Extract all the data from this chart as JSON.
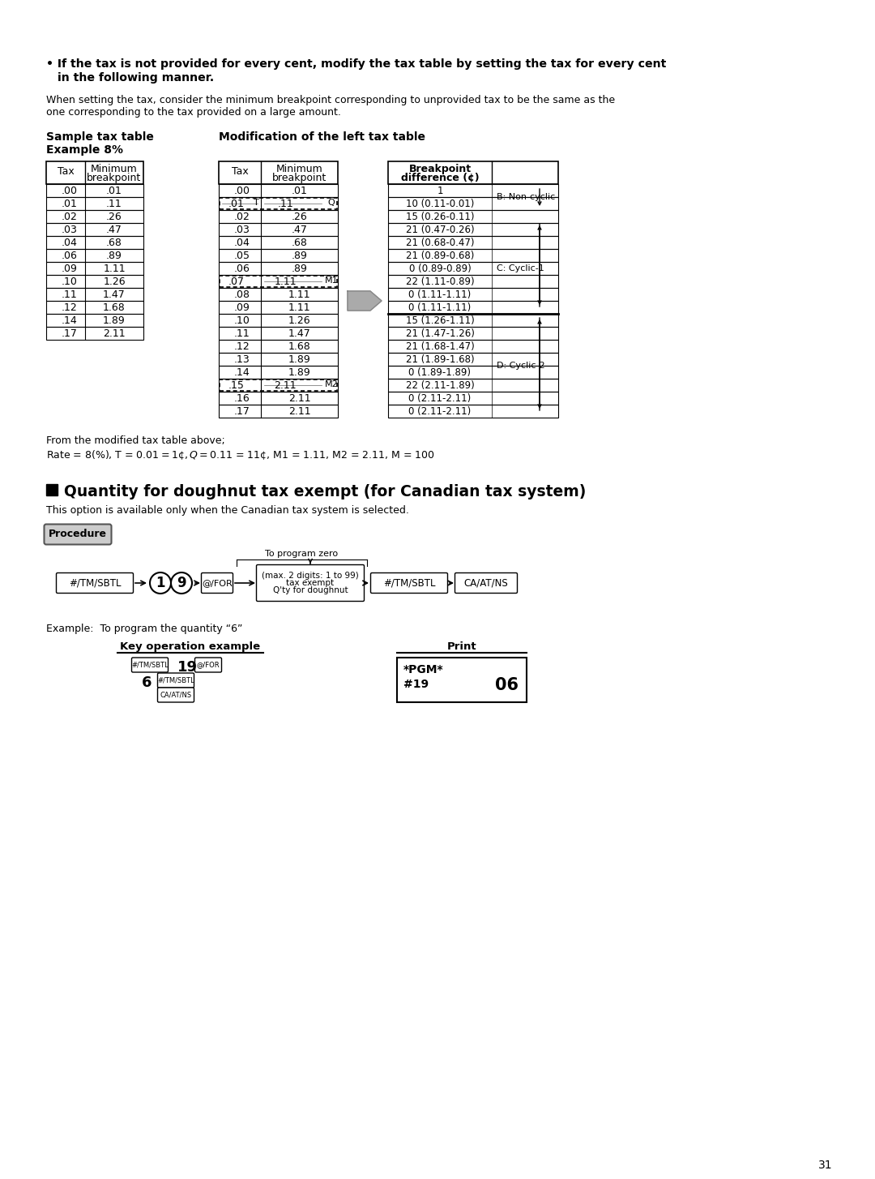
{
  "page_number": "31",
  "bg_color": "#ffffff",
  "table1_data": [
    [
      ".00",
      ".01"
    ],
    [
      ".01",
      ".11"
    ],
    [
      ".02",
      ".26"
    ],
    [
      ".03",
      ".47"
    ],
    [
      ".04",
      ".68"
    ],
    [
      ".06",
      ".89"
    ],
    [
      ".09",
      "1.11"
    ],
    [
      ".10",
      "1.26"
    ],
    [
      ".11",
      "1.47"
    ],
    [
      ".12",
      "1.68"
    ],
    [
      ".14",
      "1.89"
    ],
    [
      ".17",
      "2.11"
    ]
  ],
  "table2_data": [
    [
      ".00",
      ".01",
      false
    ],
    [
      ".01",
      ".11",
      true,
      "T",
      "Q"
    ],
    [
      ".02",
      ".26",
      false
    ],
    [
      ".03",
      ".47",
      false
    ],
    [
      ".04",
      ".68",
      false
    ],
    [
      ".05",
      ".89",
      false
    ],
    [
      ".06",
      ".89",
      false
    ],
    [
      ".07",
      "1.11",
      true,
      "",
      "M1"
    ],
    [
      ".08",
      "1.11",
      false
    ],
    [
      ".09",
      "1.11",
      false
    ],
    [
      ".10",
      "1.26",
      false
    ],
    [
      ".11",
      "1.47",
      false
    ],
    [
      ".12",
      "1.68",
      false
    ],
    [
      ".13",
      "1.89",
      false
    ],
    [
      ".14",
      "1.89",
      false
    ],
    [
      ".15",
      "2.11",
      true,
      "",
      "M2"
    ],
    [
      ".16",
      "2.11",
      false
    ],
    [
      ".17",
      "2.11",
      false
    ]
  ],
  "table3_data": [
    "1",
    "10 (0.11-0.01)",
    "15 (0.26-0.11)",
    "21 (0.47-0.26)",
    "21 (0.68-0.47)",
    "21 (0.89-0.68)",
    "0 (0.89-0.89)",
    "22 (1.11-0.89)",
    "0 (1.11-1.11)",
    "0 (1.11-1.11)",
    "15 (1.26-1.11)",
    "21 (1.47-1.26)",
    "21 (1.68-1.47)",
    "21 (1.89-1.68)",
    "0 (1.89-1.89)",
    "22 (2.11-1.89)",
    "0 (2.11-2.11)",
    "0 (2.11-2.11)"
  ],
  "from_text1": "From the modified tax table above;",
  "from_text2": "Rate = 8(%), T = $0.01 = 1¢, Q = $0.11 = 11¢, M1 = 1.11, M2 = 2.11, M = 100",
  "section_title": "Quantity for doughnut tax exempt (for Canadian tax system)",
  "section_body": "This option is available only when the Canadian tax system is selected.",
  "procedure_label": "Procedure",
  "to_program_zero": "To program zero",
  "example_text": "Example:  To program the quantity “6”",
  "key_op_label": "Key operation example",
  "print_label": "Print"
}
